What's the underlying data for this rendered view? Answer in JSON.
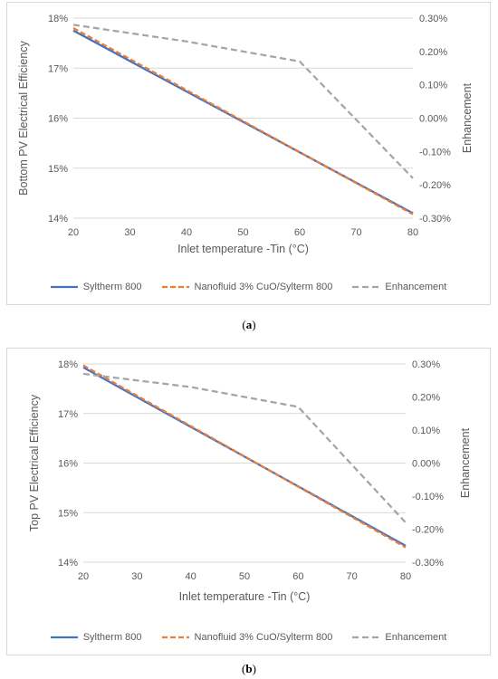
{
  "colors": {
    "syltherm": "#4472C4",
    "nanofluid": "#ED7D31",
    "enhancement": "#A5A5A5",
    "gridline": "#d9d9d9",
    "text": "#595959"
  },
  "figures": [
    {
      "caption_open": "(",
      "caption_letter": "a",
      "caption_close": ")",
      "legend": [
        "Syltherm 800",
        "Nanofluid 3% CuO/Sylterm 800",
        "Enhancement"
      ]
    },
    {
      "caption_open": "(",
      "caption_letter": "b",
      "caption_close": ")",
      "legend": [
        "Syltherm 800",
        "Nanofluid 3% CuO/Sylterm 800",
        "Enhancement"
      ]
    }
  ],
  "chart_data": [
    {
      "type": "line",
      "title": "",
      "xlabel": "Inlet temperature -Tin (°C)",
      "ylabel": "Bottom PV Electrical Efficiency",
      "y2label": "Enhancement",
      "x": [
        20,
        60,
        80
      ],
      "xticks": [
        "20",
        "30",
        "40",
        "50",
        "60",
        "70",
        "80"
      ],
      "xlim": [
        20,
        80
      ],
      "ylim": [
        14,
        18
      ],
      "yticks": [
        "14%",
        "15%",
        "16%",
        "17%",
        "18%"
      ],
      "y2lim": [
        -0.3,
        0.3
      ],
      "y2ticks": [
        "-0.30%",
        "-0.20%",
        "-0.10%",
        "0.00%",
        "0.10%",
        "0.20%",
        "0.30%"
      ],
      "grid": true,
      "legend_position": "bottom",
      "series": [
        {
          "name": "Syltherm 800",
          "axis": "left",
          "style": "solid",
          "x": [
            20,
            80
          ],
          "values": [
            17.75,
            14.1
          ]
        },
        {
          "name": "Nanofluid 3% CuO/Sylterm 800",
          "axis": "left",
          "style": "dashed",
          "x": [
            20,
            80
          ],
          "values": [
            17.8,
            14.08
          ]
        },
        {
          "name": "Enhancement",
          "axis": "right",
          "style": "dashed",
          "x": [
            20,
            40,
            60,
            80
          ],
          "values": [
            0.28,
            0.23,
            0.17,
            -0.18
          ]
        }
      ]
    },
    {
      "type": "line",
      "title": "",
      "xlabel": "Inlet temperature -Tin (°C)",
      "ylabel": "Top PV Electrical Efficiency",
      "y2label": "Enhancement",
      "x": [
        20,
        60,
        80
      ],
      "xticks": [
        "20",
        "30",
        "40",
        "50",
        "60",
        "70",
        "80"
      ],
      "xlim": [
        20,
        80
      ],
      "ylim": [
        14,
        18
      ],
      "yticks": [
        "14%",
        "15%",
        "16%",
        "17%",
        "18%"
      ],
      "y2lim": [
        -0.3,
        0.3
      ],
      "y2ticks": [
        "-0.30%",
        "-0.20%",
        "-0.10%",
        "0.00%",
        "0.10%",
        "0.20%",
        "0.30%"
      ],
      "grid": true,
      "legend_position": "bottom",
      "series": [
        {
          "name": "Syltherm 800",
          "axis": "left",
          "style": "solid",
          "x": [
            20,
            80
          ],
          "values": [
            17.93,
            14.33
          ]
        },
        {
          "name": "Nanofluid 3% CuO/Sylterm 800",
          "axis": "left",
          "style": "dashed",
          "x": [
            20,
            80
          ],
          "values": [
            17.97,
            14.3
          ]
        },
        {
          "name": "Enhancement",
          "axis": "right",
          "style": "dashed",
          "x": [
            20,
            40,
            60,
            80
          ],
          "values": [
            0.27,
            0.23,
            0.17,
            -0.18
          ]
        }
      ]
    }
  ]
}
